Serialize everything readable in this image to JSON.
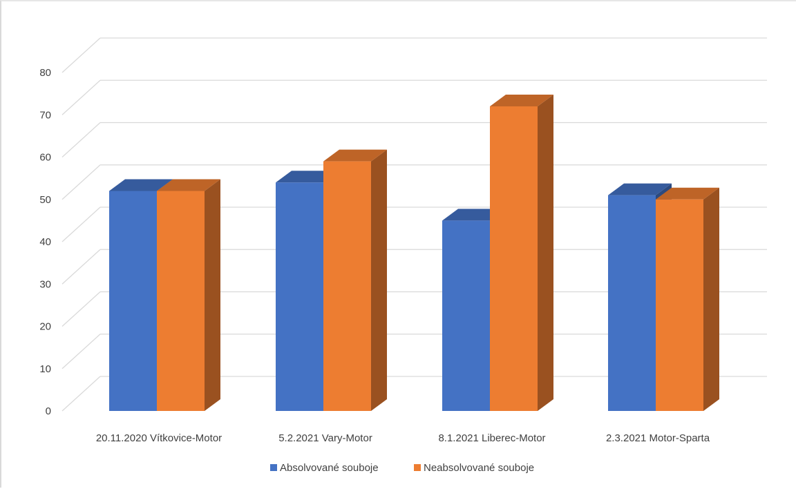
{
  "chart_data": {
    "type": "bar",
    "categories": [
      "20.11.2020 Vítkovice-Motor",
      "5.2.2021 Vary-Motor",
      "8.1.2021 Liberec-Motor",
      "2.3.2021 Motor-Sparta"
    ],
    "series": [
      {
        "name": "Absolvované souboje",
        "values": [
          52,
          54,
          45,
          51
        ],
        "color": "#4472c4"
      },
      {
        "name": "Neabsolvované souboje",
        "values": [
          52,
          59,
          72,
          50
        ],
        "color": "#ed7d31"
      }
    ],
    "ylim": [
      0,
      80
    ],
    "yticks": [
      0,
      10,
      20,
      30,
      40,
      50,
      60,
      70,
      80
    ],
    "grid": true,
    "style": "3d-clustered-column",
    "legend_position": "bottom"
  }
}
